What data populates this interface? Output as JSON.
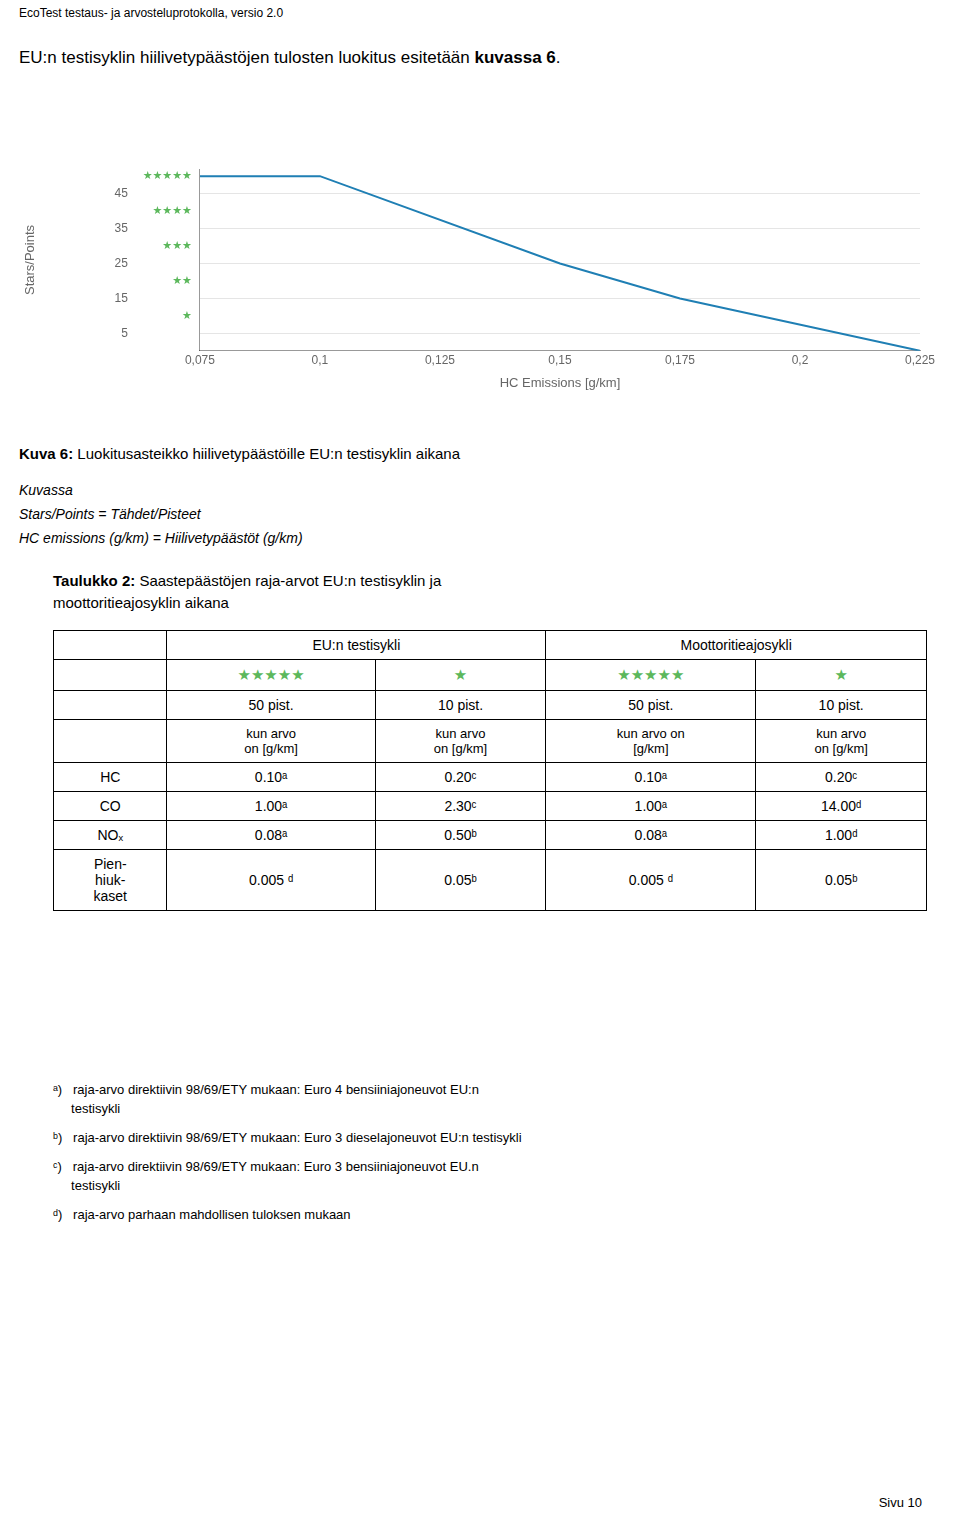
{
  "page_header": "EcoTest testaus- ja arvosteluprotokolla, versio 2.0",
  "intro": {
    "normal": "EU:n testisyklin hiilivetypäästöjen tulosten luokitus esitetään ",
    "bold": "kuvassa 6",
    "end": "."
  },
  "chart_data": {
    "type": "line",
    "x": [
      0.075,
      0.1,
      0.15,
      0.175,
      0.225
    ],
    "values": [
      50,
      50,
      25,
      15,
      0
    ],
    "color": "#1f7fb4",
    "xlabel": "HC Emissions [g/km]",
    "ylabel": "Stars/Points",
    "xlim": [
      0.075,
      0.225
    ],
    "xticks": [
      {
        "value": 0.075,
        "label": "0,075"
      },
      {
        "value": 0.1,
        "label": "0,1"
      },
      {
        "value": 0.125,
        "label": "0,125"
      },
      {
        "value": 0.15,
        "label": "0,15"
      },
      {
        "value": 0.175,
        "label": "0,175"
      },
      {
        "value": 0.2,
        "label": "0,2"
      },
      {
        "value": 0.225,
        "label": "0,225"
      }
    ],
    "ylim": [
      0,
      52
    ],
    "yticks": [
      5,
      15,
      25,
      35,
      45
    ],
    "grid": "y",
    "annotations": [
      {
        "y": 50,
        "text": "★★★★★",
        "color": "#5cb85c"
      },
      {
        "y": 40,
        "text": "★★★★",
        "color": "#5cb85c"
      },
      {
        "y": 30,
        "text": "★★★",
        "color": "#5cb85c"
      },
      {
        "y": 20,
        "text": "★★",
        "color": "#5cb85c"
      },
      {
        "y": 10,
        "text": "★",
        "color": "#5cb85c"
      }
    ]
  },
  "caption": {
    "bold": "Kuva 6:",
    "normal": " Luokitusasteikko hiilivetypäästöille EU:n testisyklin aikana",
    "italic_lines": [
      "Kuvassa",
      "Stars/Points = Tähdet/Pisteet",
      "HC emissions (g/km) = Hiilivetypäästöt (g/km)"
    ]
  },
  "table": {
    "title_bold": "Taulukko 2:",
    "title_normal1": " Saastepäästöjen raja-arvot EU:n testisyklin ja",
    "title_normal2": "moottoritieajosyklin aikana",
    "header_groups": [
      "EU:n testisykli",
      "Moottoritieajosykli"
    ],
    "stars": [
      "★★★★★",
      "★",
      "★★★★★",
      "★"
    ],
    "star_color": "#5cb85c",
    "points": [
      "50 pist.",
      "10 pist.",
      "50 pist.",
      "10 pist."
    ],
    "units": [
      "kun arvo\non [g/km]",
      "kun arvo\non [g/km]",
      "kun arvo on\n[g/km]",
      "kun arvo\non [g/km]"
    ],
    "row_labels": [
      "HC",
      "CO",
      "NOₓ",
      "Pien-\nhiuk-\nkaset"
    ],
    "rows": [
      [
        "0.10ᵃ",
        "0.20ᶜ",
        "0.10ᵃ",
        "0.20ᶜ"
      ],
      [
        "1.00ᵃ",
        "2.30ᶜ",
        "1.00ᵃ",
        "14.00ᵈ"
      ],
      [
        "0.08ᵃ",
        "0.50ᵇ",
        "0.08ᵃ",
        "1.00ᵈ"
      ],
      [
        "0.005 ᵈ",
        "0.05ᵇ",
        "0.005 ᵈ",
        "0.05ᵇ"
      ]
    ]
  },
  "footnotes": [
    "ᵃ)   raja-arvo direktiivin 98/69/ETY mukaan: Euro 4 bensiiniajoneuvot EU:n\n     testisykli",
    "ᵇ)   raja-arvo direktiivin 98/69/ETY mukaan: Euro 3 dieselajoneuvot EU:n testisykli",
    "ᶜ)   raja-arvo direktiivin 98/69/ETY mukaan: Euro 3 bensiiniajoneuvot EU.n\n     testisykli",
    "ᵈ)   raja-arvo parhaan mahdollisen tuloksen mukaan"
  ],
  "page_number": "Sivu 10"
}
